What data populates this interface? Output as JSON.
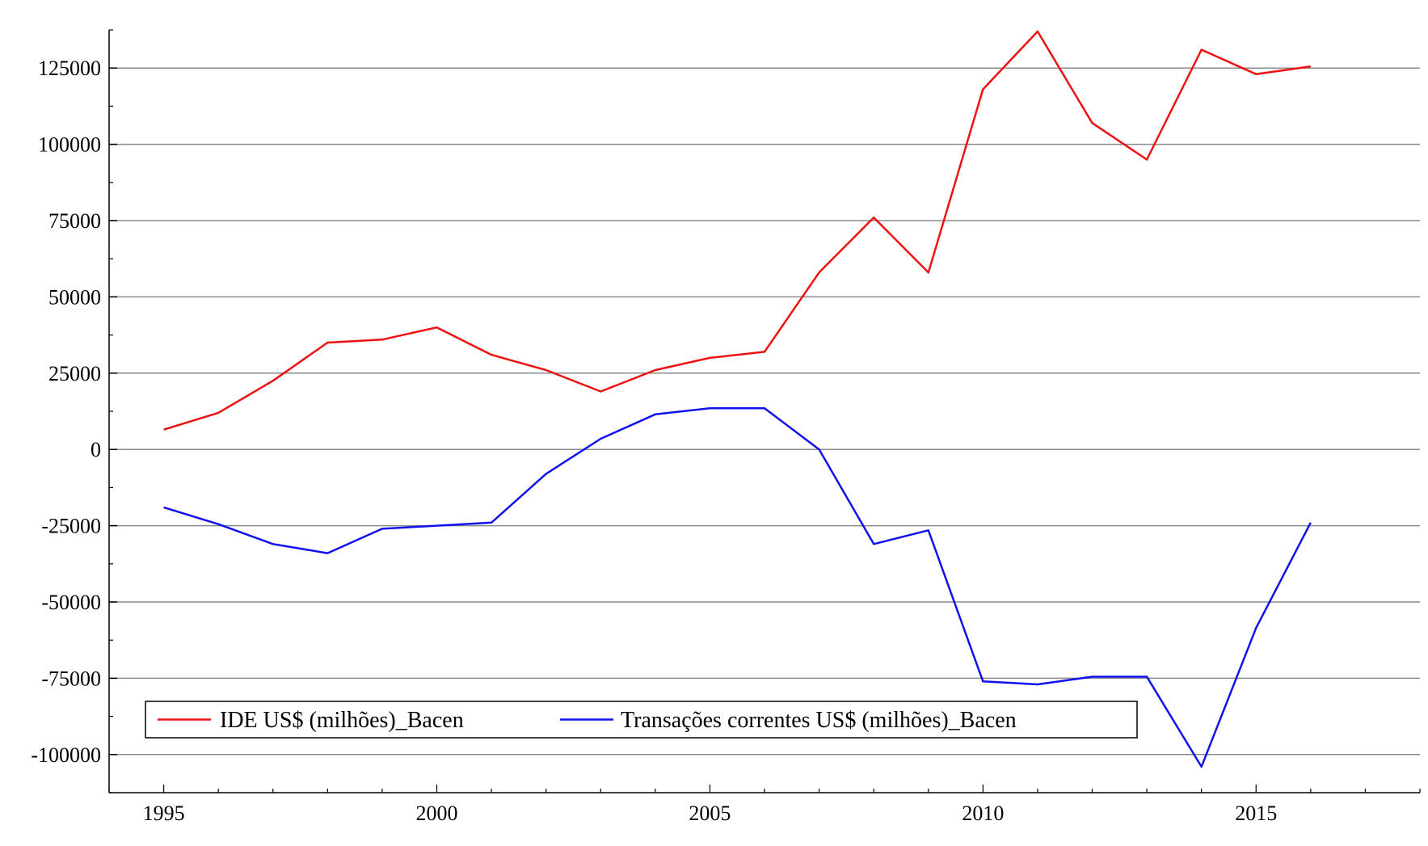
{
  "chart_data": {
    "type": "line",
    "title": "",
    "xlabel": "",
    "ylabel": "",
    "xlim": [
      1994,
      2018
    ],
    "ylim": [
      -112500,
      137500
    ],
    "x_ticks": [
      1995,
      2000,
      2005,
      2010,
      2015
    ],
    "y_ticks": [
      125000,
      100000,
      75000,
      50000,
      25000,
      0,
      -25000,
      -50000,
      -75000,
      -100000
    ],
    "grid": "horizontal",
    "legend_position": "bottom-left",
    "x": [
      1995,
      1996,
      1997,
      1998,
      1999,
      2000,
      2001,
      2002,
      2003,
      2004,
      2005,
      2006,
      2007,
      2008,
      2009,
      2010,
      2011,
      2012,
      2013,
      2014,
      2015,
      2016
    ],
    "series": [
      {
        "name": "IDE US$ (milhões)_Bacen",
        "color": "#ee1111",
        "values": [
          6500,
          12000,
          22500,
          35000,
          36000,
          40000,
          31000,
          26000,
          19000,
          26000,
          30000,
          32000,
          58000,
          76000,
          58000,
          118000,
          137000,
          107000,
          95000,
          131000,
          123000,
          125500
        ]
      },
      {
        "name": "Transações correntes US$ (milhões)_Bacen",
        "color": "#1111ee",
        "values": [
          -19000,
          -24500,
          -31000,
          -34000,
          -26000,
          -25000,
          -24000,
          -8000,
          3500,
          11500,
          13500,
          13500,
          0,
          -31000,
          -26500,
          -76000,
          -77000,
          -74500,
          -74500,
          -104000,
          -58500,
          -24000
        ]
      }
    ]
  }
}
